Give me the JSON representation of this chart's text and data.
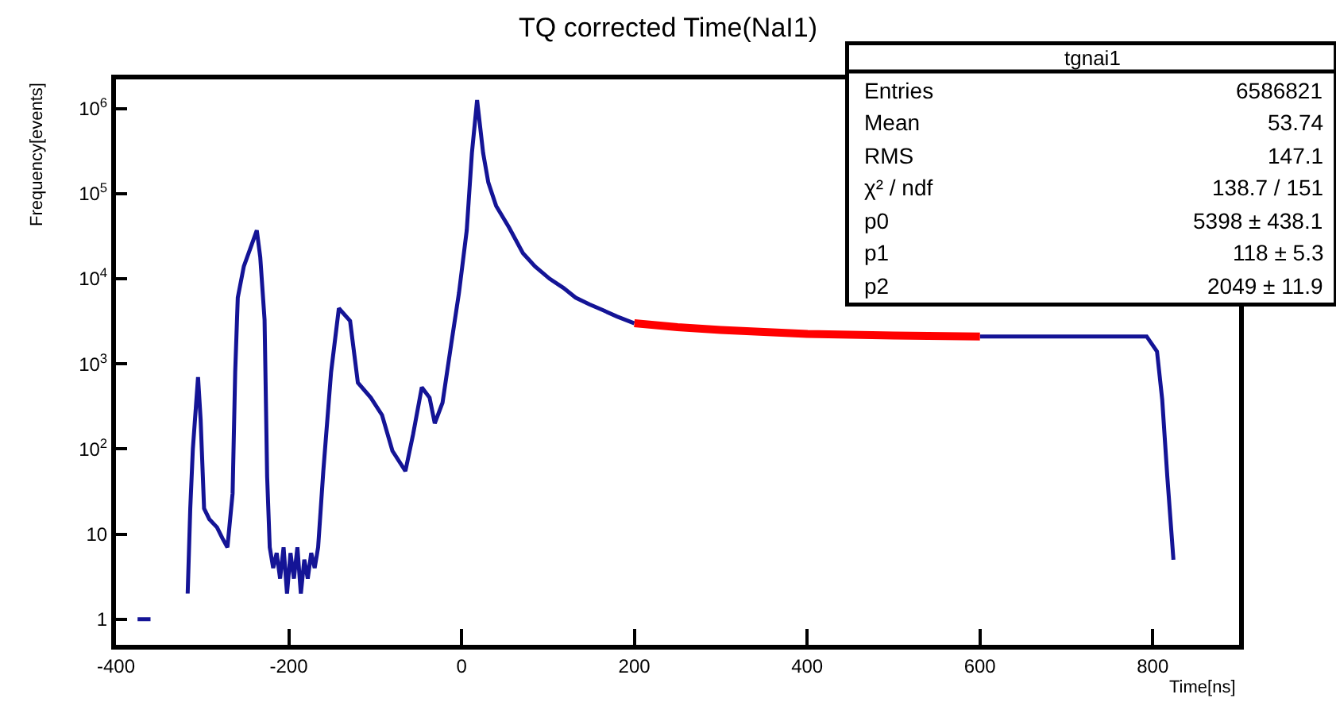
{
  "chart_data": {
    "type": "line",
    "title": "TQ corrected Time(NaI1)",
    "xlabel": "Time[ns]",
    "ylabel": "Frequency[events]",
    "log": "y",
    "grid": false,
    "marker": "none",
    "line_style": "solid",
    "xlim": [
      -400,
      900
    ],
    "xticks": [
      -400,
      -200,
      0,
      200,
      400,
      600,
      800
    ],
    "ylim": [
      0.5,
      2200000
    ],
    "yticks": [
      1,
      10,
      {
        "value": 100,
        "label": "10$^{2}$"
      },
      {
        "value": 1000,
        "label": "10$^{3}$"
      },
      {
        "value": 10000,
        "label": "10$^{4}$"
      },
      {
        "value": 100000,
        "label": "10$^{5}$"
      },
      {
        "value": 1000000,
        "label": "10$^{6}$"
      }
    ],
    "series": [
      {
        "color": "#141496",
        "x": [
          -375,
          -360,
          -330,
          -317,
          -314,
          -311,
          -305,
          -302,
          -298,
          -292,
          -283,
          -277,
          -271,
          -265,
          -262,
          -259,
          -252,
          -243,
          -237,
          -233,
          -228,
          -225,
          -222,
          -218,
          -214,
          -210,
          -206,
          -202,
          -198,
          -194,
          -190,
          -186,
          -182,
          -178,
          -174,
          -170,
          -166,
          -160,
          -151,
          -142,
          -129,
          -120,
          -105,
          -92,
          -80,
          -65,
          -56,
          -46,
          -37,
          -31,
          -22,
          -12,
          -3,
          6,
          12,
          18,
          25,
          31,
          40,
          55,
          71,
          85,
          102,
          118,
          132,
          148,
          163,
          180,
          200,
          400,
          600,
          700,
          793,
          805,
          811,
          817,
          824
        ],
        "values": [
          1,
          1,
          null,
          2,
          20,
          100,
          700,
          220,
          20,
          15,
          12,
          9,
          7,
          30,
          800,
          6000,
          14000,
          25000,
          37000,
          18000,
          3300,
          47,
          7,
          4,
          6,
          3,
          7,
          2,
          6,
          3,
          7,
          2,
          5,
          3,
          6,
          4,
          7,
          55,
          800,
          4500,
          3200,
          600,
          400,
          250,
          95,
          55,
          150,
          530,
          400,
          200,
          350,
          1700,
          6800,
          37000,
          300000,
          1260000,
          300000,
          135000,
          72000,
          40000,
          20000,
          14000,
          10000,
          7800,
          6000,
          5000,
          4300,
          3600,
          3000,
          null,
          2100,
          2100,
          2100,
          1400,
          380,
          46,
          5
        ]
      },
      {
        "color": "#ff0000",
        "x": [
          200,
          250,
          300,
          400,
          500,
          600
        ],
        "values": [
          3000,
          2700,
          2500,
          2250,
          2150,
          2100
        ]
      }
    ],
    "annotations": [
      "tgnai1",
      "Entries",
      "6586821",
      "Mean",
      "53.74",
      "RMS",
      "147.1",
      "χ² / ndf",
      "138.7 / 151",
      "p0",
      "5398 ± 438.1",
      "p1",
      "118 ± 5.3",
      "p2",
      "2049 ± 11.9"
    ]
  }
}
